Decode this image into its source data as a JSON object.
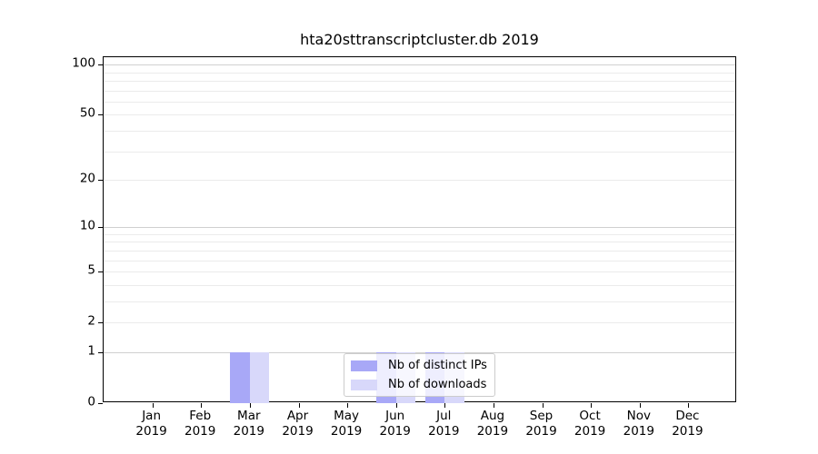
{
  "chart_data": {
    "type": "bar",
    "title": "hta20sttranscriptcluster.db 2019",
    "xlabel": "",
    "ylabel": "",
    "categories": [
      "Jan 2019",
      "Feb 2019",
      "Mar 2019",
      "Apr 2019",
      "May 2019",
      "Jun 2019",
      "Jul 2019",
      "Aug 2019",
      "Sep 2019",
      "Oct 2019",
      "Nov 2019",
      "Dec 2019"
    ],
    "series": [
      {
        "name": "Nb of distinct IPs",
        "color": "#a8a8f7",
        "values": [
          0,
          0,
          1,
          0,
          0,
          1,
          1,
          0,
          0,
          0,
          0,
          0
        ]
      },
      {
        "name": "Nb of downloads",
        "color": "#d8d8fa",
        "values": [
          0,
          0,
          1,
          0,
          0,
          1,
          1,
          0,
          0,
          0,
          0,
          0
        ]
      }
    ],
    "yscale": "log1p",
    "ylim": [
      0,
      110
    ],
    "yticks": [
      0,
      1,
      2,
      5,
      10,
      20,
      50,
      100
    ],
    "grid": {
      "orientation": "horizontal",
      "major_values": [
        1,
        10,
        100
      ],
      "minor_values": [
        2,
        3,
        4,
        5,
        6,
        7,
        8,
        9,
        20,
        30,
        40,
        50,
        60,
        70,
        80,
        90
      ]
    },
    "legend": {
      "position": "lower-center-inset",
      "items": [
        "Nb of distinct IPs",
        "Nb of downloads"
      ]
    }
  },
  "colors": {
    "grid_major": "#d0d0d0",
    "grid_minor": "#ebebeb",
    "spine": "#000000",
    "text": "#000000",
    "legend_border": "#cccccc",
    "legend_background": "rgba(255,255,255,0.8)"
  }
}
